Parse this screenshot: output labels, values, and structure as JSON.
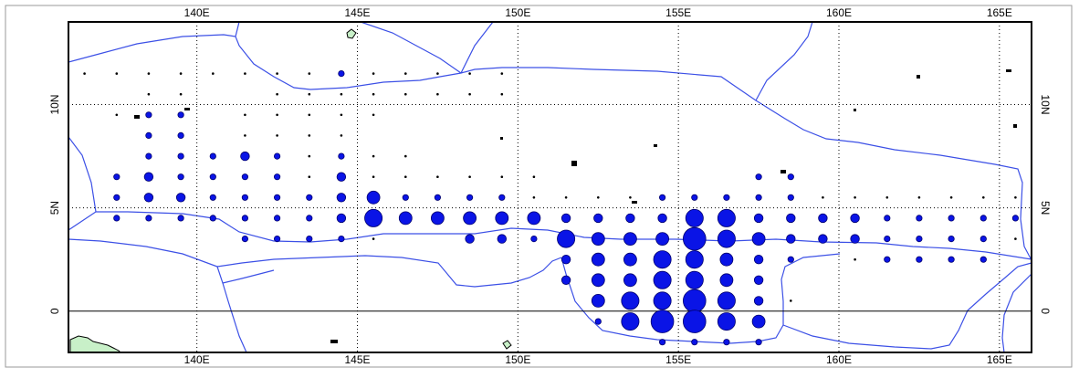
{
  "map": {
    "lon_range": [
      136,
      166
    ],
    "lat_range": [
      -2,
      14
    ],
    "grid": true,
    "tick_labels_bottom": [
      "140E",
      "145E",
      "150E",
      "155E",
      "160E",
      "165E"
    ],
    "tick_labels_top": [
      "140E",
      "145E",
      "150E",
      "155E",
      "160E",
      "165E"
    ],
    "lon_ticks": [
      140,
      145,
      150,
      155,
      160,
      165
    ],
    "lat_ticks": [
      0,
      5,
      10
    ],
    "tick_labels_left": [
      "0",
      "5N",
      "10N"
    ],
    "tick_labels_right": [
      "0",
      "5N",
      "10N"
    ],
    "colors": {
      "dot": "#0a14e6",
      "dot_stroke": "#00006e",
      "boundary": "#3c50e6",
      "land": "#c8f0c8",
      "grid": "#000000"
    }
  },
  "chart_data": {
    "type": "bubble-map",
    "x_unit": "degrees east longitude",
    "y_unit": "degrees north latitude",
    "points": [
      {
        "lon": 136.5,
        "lat": 11.5,
        "size": 1
      },
      {
        "lon": 137.5,
        "lat": 11.5,
        "size": 1
      },
      {
        "lon": 138.5,
        "lat": 11.5,
        "size": 1
      },
      {
        "lon": 139.5,
        "lat": 11.5,
        "size": 1
      },
      {
        "lon": 140.5,
        "lat": 11.5,
        "size": 1
      },
      {
        "lon": 141.5,
        "lat": 11.5,
        "size": 1
      },
      {
        "lon": 142.5,
        "lat": 11.5,
        "size": 1
      },
      {
        "lon": 143.5,
        "lat": 11.5,
        "size": 1
      },
      {
        "lon": 144.5,
        "lat": 11.5,
        "size": 2
      },
      {
        "lon": 145.5,
        "lat": 11.5,
        "size": 1
      },
      {
        "lon": 146.5,
        "lat": 11.5,
        "size": 1
      },
      {
        "lon": 147.5,
        "lat": 11.5,
        "size": 1
      },
      {
        "lon": 148.5,
        "lat": 11.5,
        "size": 1
      },
      {
        "lon": 149.5,
        "lat": 11.5,
        "size": 1
      },
      {
        "lon": 138.5,
        "lat": 10.5,
        "size": 1
      },
      {
        "lon": 139.5,
        "lat": 10.5,
        "size": 1
      },
      {
        "lon": 142.5,
        "lat": 10.5,
        "size": 1
      },
      {
        "lon": 143.5,
        "lat": 10.5,
        "size": 1
      },
      {
        "lon": 144.5,
        "lat": 10.5,
        "size": 1
      },
      {
        "lon": 145.5,
        "lat": 10.5,
        "size": 1
      },
      {
        "lon": 146.5,
        "lat": 10.5,
        "size": 1
      },
      {
        "lon": 147.5,
        "lat": 10.5,
        "size": 1
      },
      {
        "lon": 148.5,
        "lat": 10.5,
        "size": 1
      },
      {
        "lon": 149.5,
        "lat": 10.5,
        "size": 1
      },
      {
        "lon": 137.5,
        "lat": 9.5,
        "size": 1
      },
      {
        "lon": 138.5,
        "lat": 9.5,
        "size": 2
      },
      {
        "lon": 139.5,
        "lat": 9.5,
        "size": 2
      },
      {
        "lon": 141.5,
        "lat": 9.5,
        "size": 1
      },
      {
        "lon": 142.5,
        "lat": 9.5,
        "size": 1
      },
      {
        "lon": 143.5,
        "lat": 9.5,
        "size": 1
      },
      {
        "lon": 144.5,
        "lat": 9.5,
        "size": 1
      },
      {
        "lon": 145.5,
        "lat": 9.5,
        "size": 1
      },
      {
        "lon": 138.5,
        "lat": 8.5,
        "size": 2
      },
      {
        "lon": 139.5,
        "lat": 8.5,
        "size": 2
      },
      {
        "lon": 141.5,
        "lat": 8.5,
        "size": 1
      },
      {
        "lon": 142.5,
        "lat": 8.5,
        "size": 1
      },
      {
        "lon": 143.5,
        "lat": 8.5,
        "size": 1
      },
      {
        "lon": 144.5,
        "lat": 8.5,
        "size": 1
      },
      {
        "lon": 138.5,
        "lat": 7.5,
        "size": 2
      },
      {
        "lon": 139.5,
        "lat": 7.5,
        "size": 2
      },
      {
        "lon": 140.5,
        "lat": 7.5,
        "size": 2
      },
      {
        "lon": 141.5,
        "lat": 7.5,
        "size": 3
      },
      {
        "lon": 142.5,
        "lat": 7.5,
        "size": 2
      },
      {
        "lon": 143.5,
        "lat": 7.5,
        "size": 1
      },
      {
        "lon": 144.5,
        "lat": 7.5,
        "size": 2
      },
      {
        "lon": 145.5,
        "lat": 7.5,
        "size": 1
      },
      {
        "lon": 146.5,
        "lat": 7.5,
        "size": 1
      },
      {
        "lon": 137.5,
        "lat": 6.5,
        "size": 2
      },
      {
        "lon": 138.5,
        "lat": 6.5,
        "size": 3
      },
      {
        "lon": 139.5,
        "lat": 6.5,
        "size": 2
      },
      {
        "lon": 140.5,
        "lat": 6.5,
        "size": 2
      },
      {
        "lon": 141.5,
        "lat": 6.5,
        "size": 2
      },
      {
        "lon": 142.5,
        "lat": 6.5,
        "size": 2
      },
      {
        "lon": 143.5,
        "lat": 6.5,
        "size": 1
      },
      {
        "lon": 144.5,
        "lat": 6.5,
        "size": 3
      },
      {
        "lon": 145.5,
        "lat": 6.5,
        "size": 1
      },
      {
        "lon": 146.5,
        "lat": 6.5,
        "size": 1
      },
      {
        "lon": 147.5,
        "lat": 6.5,
        "size": 1
      },
      {
        "lon": 148.5,
        "lat": 6.5,
        "size": 1
      },
      {
        "lon": 149.5,
        "lat": 6.5,
        "size": 1
      },
      {
        "lon": 150.5,
        "lat": 6.5,
        "size": 1
      },
      {
        "lon": 157.5,
        "lat": 6.5,
        "size": 2
      },
      {
        "lon": 158.5,
        "lat": 6.5,
        "size": 2
      },
      {
        "lon": 137.5,
        "lat": 5.5,
        "size": 2
      },
      {
        "lon": 138.5,
        "lat": 5.5,
        "size": 3
      },
      {
        "lon": 139.5,
        "lat": 5.5,
        "size": 3
      },
      {
        "lon": 140.5,
        "lat": 5.5,
        "size": 2
      },
      {
        "lon": 141.5,
        "lat": 5.5,
        "size": 2
      },
      {
        "lon": 142.5,
        "lat": 5.5,
        "size": 2
      },
      {
        "lon": 143.5,
        "lat": 5.5,
        "size": 2
      },
      {
        "lon": 144.5,
        "lat": 5.5,
        "size": 3
      },
      {
        "lon": 145.5,
        "lat": 5.5,
        "size": 4
      },
      {
        "lon": 146.5,
        "lat": 5.5,
        "size": 2
      },
      {
        "lon": 147.5,
        "lat": 5.5,
        "size": 2
      },
      {
        "lon": 148.5,
        "lat": 5.5,
        "size": 2
      },
      {
        "lon": 149.5,
        "lat": 5.5,
        "size": 2
      },
      {
        "lon": 150.5,
        "lat": 5.5,
        "size": 1
      },
      {
        "lon": 151.5,
        "lat": 5.5,
        "size": 1
      },
      {
        "lon": 152.5,
        "lat": 5.5,
        "size": 1
      },
      {
        "lon": 153.5,
        "lat": 5.5,
        "size": 1
      },
      {
        "lon": 154.5,
        "lat": 5.5,
        "size": 2
      },
      {
        "lon": 155.5,
        "lat": 5.5,
        "size": 2
      },
      {
        "lon": 156.5,
        "lat": 5.5,
        "size": 2
      },
      {
        "lon": 157.5,
        "lat": 5.5,
        "size": 2
      },
      {
        "lon": 158.5,
        "lat": 5.5,
        "size": 2
      },
      {
        "lon": 159.5,
        "lat": 5.5,
        "size": 1
      },
      {
        "lon": 160.5,
        "lat": 5.5,
        "size": 1
      },
      {
        "lon": 161.5,
        "lat": 5.5,
        "size": 1
      },
      {
        "lon": 162.5,
        "lat": 5.5,
        "size": 1
      },
      {
        "lon": 163.5,
        "lat": 5.5,
        "size": 1
      },
      {
        "lon": 164.5,
        "lat": 5.5,
        "size": 1
      },
      {
        "lon": 165.5,
        "lat": 5.5,
        "size": 1
      },
      {
        "lon": 137.5,
        "lat": 4.5,
        "size": 2
      },
      {
        "lon": 138.5,
        "lat": 4.5,
        "size": 2
      },
      {
        "lon": 139.5,
        "lat": 4.5,
        "size": 2
      },
      {
        "lon": 140.5,
        "lat": 4.5,
        "size": 2
      },
      {
        "lon": 141.5,
        "lat": 4.5,
        "size": 2
      },
      {
        "lon": 142.5,
        "lat": 4.5,
        "size": 2
      },
      {
        "lon": 143.5,
        "lat": 4.5,
        "size": 2
      },
      {
        "lon": 144.5,
        "lat": 4.5,
        "size": 3
      },
      {
        "lon": 145.5,
        "lat": 4.5,
        "size": 5
      },
      {
        "lon": 146.5,
        "lat": 4.5,
        "size": 4
      },
      {
        "lon": 147.5,
        "lat": 4.5,
        "size": 4
      },
      {
        "lon": 148.5,
        "lat": 4.5,
        "size": 4
      },
      {
        "lon": 149.5,
        "lat": 4.5,
        "size": 4
      },
      {
        "lon": 150.5,
        "lat": 4.5,
        "size": 4
      },
      {
        "lon": 151.5,
        "lat": 4.5,
        "size": 3
      },
      {
        "lon": 152.5,
        "lat": 4.5,
        "size": 3
      },
      {
        "lon": 153.5,
        "lat": 4.5,
        "size": 3
      },
      {
        "lon": 154.5,
        "lat": 4.5,
        "size": 3
      },
      {
        "lon": 155.5,
        "lat": 4.5,
        "size": 5
      },
      {
        "lon": 156.5,
        "lat": 4.5,
        "size": 5
      },
      {
        "lon": 157.5,
        "lat": 4.5,
        "size": 3
      },
      {
        "lon": 158.5,
        "lat": 4.5,
        "size": 3
      },
      {
        "lon": 159.5,
        "lat": 4.5,
        "size": 3
      },
      {
        "lon": 160.5,
        "lat": 4.5,
        "size": 3
      },
      {
        "lon": 161.5,
        "lat": 4.5,
        "size": 2
      },
      {
        "lon": 162.5,
        "lat": 4.5,
        "size": 2
      },
      {
        "lon": 163.5,
        "lat": 4.5,
        "size": 2
      },
      {
        "lon": 164.5,
        "lat": 4.5,
        "size": 2
      },
      {
        "lon": 165.5,
        "lat": 4.5,
        "size": 2
      },
      {
        "lon": 141.5,
        "lat": 3.5,
        "size": 2
      },
      {
        "lon": 142.5,
        "lat": 3.5,
        "size": 2
      },
      {
        "lon": 143.5,
        "lat": 3.5,
        "size": 2
      },
      {
        "lon": 144.5,
        "lat": 3.5,
        "size": 2
      },
      {
        "lon": 145.5,
        "lat": 3.5,
        "size": 1
      },
      {
        "lon": 148.5,
        "lat": 3.5,
        "size": 3
      },
      {
        "lon": 149.5,
        "lat": 3.5,
        "size": 3
      },
      {
        "lon": 150.5,
        "lat": 3.5,
        "size": 2
      },
      {
        "lon": 151.5,
        "lat": 3.5,
        "size": 5
      },
      {
        "lon": 152.5,
        "lat": 3.5,
        "size": 4
      },
      {
        "lon": 153.5,
        "lat": 3.5,
        "size": 4
      },
      {
        "lon": 154.5,
        "lat": 3.5,
        "size": 4
      },
      {
        "lon": 155.5,
        "lat": 3.5,
        "size": 6
      },
      {
        "lon": 156.5,
        "lat": 3.5,
        "size": 5
      },
      {
        "lon": 157.5,
        "lat": 3.5,
        "size": 4
      },
      {
        "lon": 158.5,
        "lat": 3.5,
        "size": 3
      },
      {
        "lon": 159.5,
        "lat": 3.5,
        "size": 3
      },
      {
        "lon": 160.5,
        "lat": 3.5,
        "size": 3
      },
      {
        "lon": 161.5,
        "lat": 3.5,
        "size": 2
      },
      {
        "lon": 162.5,
        "lat": 3.5,
        "size": 2
      },
      {
        "lon": 163.5,
        "lat": 3.5,
        "size": 2
      },
      {
        "lon": 164.5,
        "lat": 3.5,
        "size": 2
      },
      {
        "lon": 165.5,
        "lat": 3.5,
        "size": 1
      },
      {
        "lon": 151.5,
        "lat": 2.5,
        "size": 3
      },
      {
        "lon": 152.5,
        "lat": 2.5,
        "size": 4
      },
      {
        "lon": 153.5,
        "lat": 2.5,
        "size": 4
      },
      {
        "lon": 154.5,
        "lat": 2.5,
        "size": 5
      },
      {
        "lon": 155.5,
        "lat": 2.5,
        "size": 5
      },
      {
        "lon": 156.5,
        "lat": 2.5,
        "size": 4
      },
      {
        "lon": 157.5,
        "lat": 2.5,
        "size": 3
      },
      {
        "lon": 158.5,
        "lat": 2.5,
        "size": 2
      },
      {
        "lon": 160.5,
        "lat": 2.5,
        "size": 1
      },
      {
        "lon": 161.5,
        "lat": 2.5,
        "size": 2
      },
      {
        "lon": 162.5,
        "lat": 2.5,
        "size": 2
      },
      {
        "lon": 163.5,
        "lat": 2.5,
        "size": 2
      },
      {
        "lon": 164.5,
        "lat": 2.5,
        "size": 2
      },
      {
        "lon": 151.5,
        "lat": 1.5,
        "size": 3
      },
      {
        "lon": 152.5,
        "lat": 1.5,
        "size": 4
      },
      {
        "lon": 153.5,
        "lat": 1.5,
        "size": 4
      },
      {
        "lon": 154.5,
        "lat": 1.5,
        "size": 5
      },
      {
        "lon": 155.5,
        "lat": 1.5,
        "size": 5
      },
      {
        "lon": 156.5,
        "lat": 1.5,
        "size": 4
      },
      {
        "lon": 157.5,
        "lat": 1.5,
        "size": 3
      },
      {
        "lon": 152.5,
        "lat": 0.5,
        "size": 4
      },
      {
        "lon": 153.5,
        "lat": 0.5,
        "size": 5
      },
      {
        "lon": 154.5,
        "lat": 0.5,
        "size": 5
      },
      {
        "lon": 155.5,
        "lat": 0.5,
        "size": 6
      },
      {
        "lon": 156.5,
        "lat": 0.5,
        "size": 5
      },
      {
        "lon": 157.5,
        "lat": 0.5,
        "size": 3
      },
      {
        "lon": 158.5,
        "lat": 0.5,
        "size": 1
      },
      {
        "lon": 152.5,
        "lat": -0.5,
        "size": 2
      },
      {
        "lon": 153.5,
        "lat": -0.5,
        "size": 5
      },
      {
        "lon": 154.5,
        "lat": -0.5,
        "size": 6
      },
      {
        "lon": 155.5,
        "lat": -0.5,
        "size": 6
      },
      {
        "lon": 156.5,
        "lat": -0.5,
        "size": 5
      },
      {
        "lon": 157.5,
        "lat": -0.5,
        "size": 4
      },
      {
        "lon": 154.5,
        "lat": -1.5,
        "size": 2
      },
      {
        "lon": 155.5,
        "lat": -1.5,
        "size": 2
      },
      {
        "lon": 156.5,
        "lat": -1.5,
        "size": 2
      },
      {
        "lon": 157.5,
        "lat": -1.5,
        "size": 2
      }
    ]
  }
}
